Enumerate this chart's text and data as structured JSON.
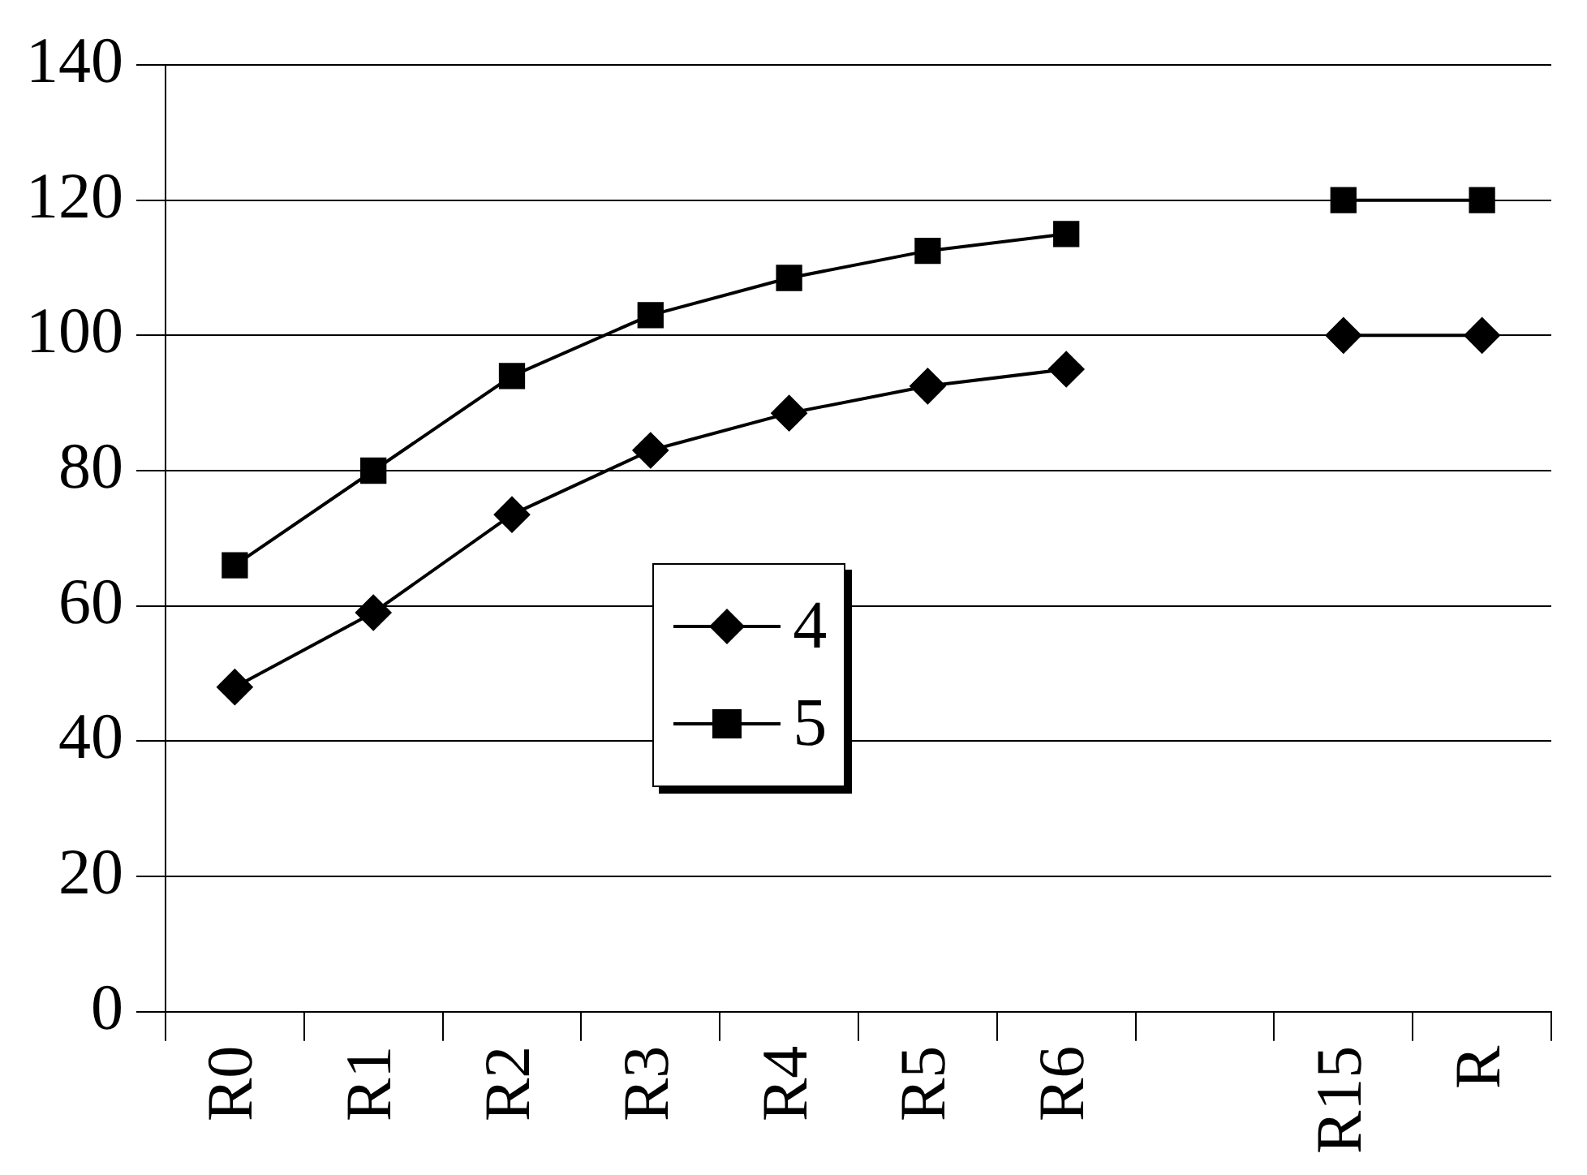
{
  "chart_data": {
    "type": "line",
    "categories": [
      "R0",
      "R1",
      "R2",
      "R3",
      "R4",
      "R5",
      "R6",
      null,
      "R15",
      "R"
    ],
    "series": [
      {
        "name": "4",
        "color": "#000000",
        "marker": "diamond",
        "values": [
          48,
          59,
          73.5,
          83,
          88.5,
          92.5,
          95,
          null,
          100,
          100
        ]
      },
      {
        "name": "5",
        "color": "#000000",
        "marker": "square",
        "values": [
          66,
          80,
          94,
          103,
          108.5,
          112.5,
          115,
          null,
          120,
          120
        ]
      }
    ],
    "ylim": [
      0,
      140
    ],
    "yticks": [
      0,
      20,
      40,
      60,
      80,
      100,
      120,
      140
    ],
    "grid": "y",
    "legend": "center",
    "line_style": "solid"
  }
}
